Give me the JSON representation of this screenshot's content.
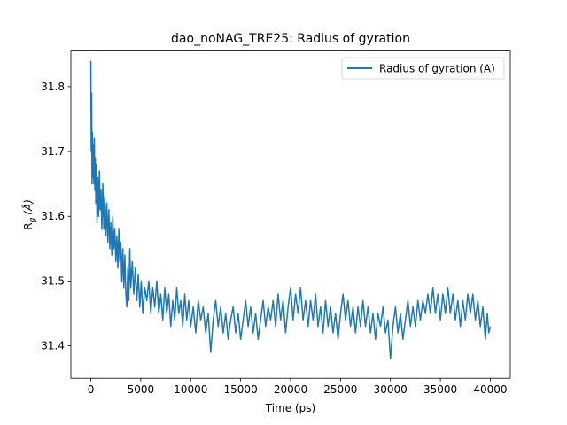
{
  "chart_data": {
    "type": "line",
    "title": "dao_noNAG_TRE25: Radius of gyration",
    "xlabel": "Time (ps)",
    "ylabel": "R",
    "ylabel_sub": "g",
    "ylabel_unit": "(Å)",
    "xlim": [
      -2000,
      42000
    ],
    "ylim": [
      31.35,
      31.855
    ],
    "xticks": [
      0,
      5000,
      10000,
      15000,
      20000,
      25000,
      30000,
      35000,
      40000
    ],
    "yticks": [
      31.4,
      31.5,
      31.6,
      31.7,
      31.8
    ],
    "legend_position": "top-right",
    "grid": false,
    "series": [
      {
        "name": "Radius of gyration (A)",
        "color": "#1f77b4",
        "points": [
          [
            0,
            31.84
          ],
          [
            40,
            31.7
          ],
          [
            80,
            31.79
          ],
          [
            120,
            31.65
          ],
          [
            160,
            31.73
          ],
          [
            200,
            31.66
          ],
          [
            250,
            31.71
          ],
          [
            300,
            31.65
          ],
          [
            350,
            31.72
          ],
          [
            400,
            31.64
          ],
          [
            450,
            31.69
          ],
          [
            500,
            31.62
          ],
          [
            560,
            31.68
          ],
          [
            620,
            31.59
          ],
          [
            700,
            31.66
          ],
          [
            780,
            31.6
          ],
          [
            860,
            31.67
          ],
          [
            940,
            31.61
          ],
          [
            1020,
            31.64
          ],
          [
            1100,
            31.58
          ],
          [
            1200,
            31.65
          ],
          [
            1300,
            31.58
          ],
          [
            1400,
            31.63
          ],
          [
            1500,
            31.57
          ],
          [
            1600,
            31.62
          ],
          [
            1700,
            31.56
          ],
          [
            1800,
            31.61
          ],
          [
            1900,
            31.55
          ],
          [
            2000,
            31.59
          ],
          [
            2100,
            31.54
          ],
          [
            2200,
            31.6
          ],
          [
            2300,
            31.55
          ],
          [
            2400,
            31.58
          ],
          [
            2500,
            31.53
          ],
          [
            2600,
            31.57
          ],
          [
            2700,
            31.52
          ],
          [
            2800,
            31.58
          ],
          [
            2900,
            31.53
          ],
          [
            3000,
            31.56
          ],
          [
            3100,
            31.5
          ],
          [
            3200,
            31.55
          ],
          [
            3300,
            31.49
          ],
          [
            3400,
            31.54
          ],
          [
            3500,
            31.48
          ],
          [
            3600,
            31.46
          ],
          [
            3700,
            31.52
          ],
          [
            3800,
            31.47
          ],
          [
            3900,
            31.55
          ],
          [
            4000,
            31.49
          ],
          [
            4150,
            31.53
          ],
          [
            4300,
            31.48
          ],
          [
            4450,
            31.52
          ],
          [
            4600,
            31.47
          ],
          [
            4750,
            31.51
          ],
          [
            4900,
            31.46
          ],
          [
            5050,
            31.5
          ],
          [
            5200,
            31.45
          ],
          [
            5400,
            31.49
          ],
          [
            5600,
            31.47
          ],
          [
            5800,
            31.5
          ],
          [
            6000,
            31.45
          ],
          [
            6200,
            31.49
          ],
          [
            6400,
            31.46
          ],
          [
            6600,
            31.5
          ],
          [
            6800,
            31.45
          ],
          [
            7000,
            31.48
          ],
          [
            7200,
            31.44
          ],
          [
            7400,
            31.49
          ],
          [
            7600,
            31.45
          ],
          [
            7800,
            31.48
          ],
          [
            8000,
            31.43
          ],
          [
            8200,
            31.47
          ],
          [
            8400,
            31.44
          ],
          [
            8600,
            31.49
          ],
          [
            8800,
            31.45
          ],
          [
            9000,
            31.47
          ],
          [
            9200,
            31.43
          ],
          [
            9400,
            31.48
          ],
          [
            9600,
            31.44
          ],
          [
            9800,
            31.47
          ],
          [
            10000,
            31.43
          ],
          [
            10250,
            31.46
          ],
          [
            10500,
            31.42
          ],
          [
            10750,
            31.47
          ],
          [
            11000,
            31.44
          ],
          [
            11250,
            31.46
          ],
          [
            11500,
            31.42
          ],
          [
            11750,
            31.45
          ],
          [
            12000,
            31.39
          ],
          [
            12250,
            31.44
          ],
          [
            12500,
            31.47
          ],
          [
            12750,
            31.43
          ],
          [
            13000,
            31.46
          ],
          [
            13250,
            31.42
          ],
          [
            13500,
            31.45
          ],
          [
            13750,
            31.41
          ],
          [
            14000,
            31.44
          ],
          [
            14250,
            31.46
          ],
          [
            14500,
            31.42
          ],
          [
            14750,
            31.45
          ],
          [
            15000,
            31.41
          ],
          [
            15250,
            31.44
          ],
          [
            15500,
            31.47
          ],
          [
            15750,
            31.43
          ],
          [
            16000,
            31.46
          ],
          [
            16250,
            31.42
          ],
          [
            16500,
            31.45
          ],
          [
            16750,
            31.41
          ],
          [
            17000,
            31.44
          ],
          [
            17250,
            31.47
          ],
          [
            17500,
            31.43
          ],
          [
            17750,
            31.46
          ],
          [
            18000,
            31.44
          ],
          [
            18250,
            31.47
          ],
          [
            18500,
            31.43
          ],
          [
            18750,
            31.48
          ],
          [
            19000,
            31.44
          ],
          [
            19250,
            31.47
          ],
          [
            19500,
            31.42
          ],
          [
            19750,
            31.46
          ],
          [
            20000,
            31.49
          ],
          [
            20250,
            31.44
          ],
          [
            20500,
            31.48
          ],
          [
            20750,
            31.45
          ],
          [
            21000,
            31.49
          ],
          [
            21250,
            31.44
          ],
          [
            21500,
            31.47
          ],
          [
            21750,
            31.43
          ],
          [
            22000,
            31.47
          ],
          [
            22250,
            31.44
          ],
          [
            22500,
            31.48
          ],
          [
            22750,
            31.43
          ],
          [
            23000,
            31.46
          ],
          [
            23250,
            31.42
          ],
          [
            23500,
            31.47
          ],
          [
            23750,
            31.43
          ],
          [
            24000,
            31.46
          ],
          [
            24250,
            31.42
          ],
          [
            24500,
            31.45
          ],
          [
            24750,
            31.41
          ],
          [
            25000,
            31.45
          ],
          [
            25250,
            31.48
          ],
          [
            25500,
            31.44
          ],
          [
            25750,
            31.47
          ],
          [
            26000,
            31.43
          ],
          [
            26250,
            31.46
          ],
          [
            26500,
            31.42
          ],
          [
            26750,
            31.46
          ],
          [
            27000,
            31.43
          ],
          [
            27250,
            31.47
          ],
          [
            27500,
            31.43
          ],
          [
            27750,
            31.46
          ],
          [
            28000,
            31.42
          ],
          [
            28250,
            31.45
          ],
          [
            28500,
            31.41
          ],
          [
            28750,
            31.45
          ],
          [
            29000,
            31.43
          ],
          [
            29250,
            31.46
          ],
          [
            29500,
            31.42
          ],
          [
            29750,
            31.44
          ],
          [
            30000,
            31.38
          ],
          [
            30250,
            31.43
          ],
          [
            30500,
            31.46
          ],
          [
            30750,
            31.42
          ],
          [
            31000,
            31.45
          ],
          [
            31250,
            31.41
          ],
          [
            31500,
            31.44
          ],
          [
            31750,
            31.47
          ],
          [
            32000,
            31.43
          ],
          [
            32250,
            31.46
          ],
          [
            32500,
            31.43
          ],
          [
            32750,
            31.47
          ],
          [
            33000,
            31.44
          ],
          [
            33250,
            31.47
          ],
          [
            33500,
            31.45
          ],
          [
            33750,
            31.48
          ],
          [
            34000,
            31.45
          ],
          [
            34250,
            31.49
          ],
          [
            34500,
            31.45
          ],
          [
            34750,
            31.48
          ],
          [
            35000,
            31.44
          ],
          [
            35250,
            31.48
          ],
          [
            35500,
            31.45
          ],
          [
            35750,
            31.49
          ],
          [
            36000,
            31.45
          ],
          [
            36250,
            31.48
          ],
          [
            36500,
            31.44
          ],
          [
            36750,
            31.47
          ],
          [
            37000,
            31.43
          ],
          [
            37250,
            31.47
          ],
          [
            37500,
            31.44
          ],
          [
            37750,
            31.48
          ],
          [
            38000,
            31.45
          ],
          [
            38250,
            31.48
          ],
          [
            38500,
            31.44
          ],
          [
            38750,
            31.47
          ],
          [
            39000,
            31.43
          ],
          [
            39250,
            31.46
          ],
          [
            39500,
            31.41
          ],
          [
            39700,
            31.45
          ],
          [
            39850,
            31.42
          ],
          [
            40000,
            31.43
          ]
        ]
      }
    ]
  }
}
